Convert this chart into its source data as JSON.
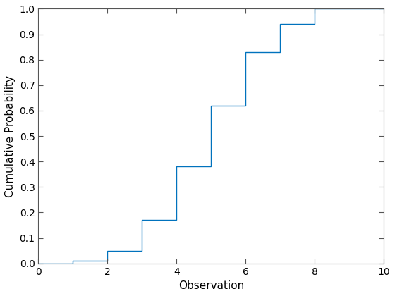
{
  "edges": [
    0,
    1,
    2,
    3,
    4,
    5,
    6,
    7,
    8,
    10
  ],
  "values": [
    0.0,
    0.01,
    0.05,
    0.17,
    0.38,
    0.62,
    0.83,
    0.94,
    1.0
  ],
  "xlim": [
    0,
    10
  ],
  "ylim": [
    0,
    1
  ],
  "xlabel": "Observation",
  "ylabel": "Cumulative Probability",
  "line_color": "#0072BD",
  "line_width": 1.0,
  "xticks": [
    0,
    2,
    4,
    6,
    8,
    10
  ],
  "yticks": [
    0,
    0.1,
    0.2,
    0.3,
    0.4,
    0.5,
    0.6,
    0.7,
    0.8,
    0.9,
    1.0
  ],
  "figsize": [
    5.6,
    4.2
  ],
  "dpi": 100
}
